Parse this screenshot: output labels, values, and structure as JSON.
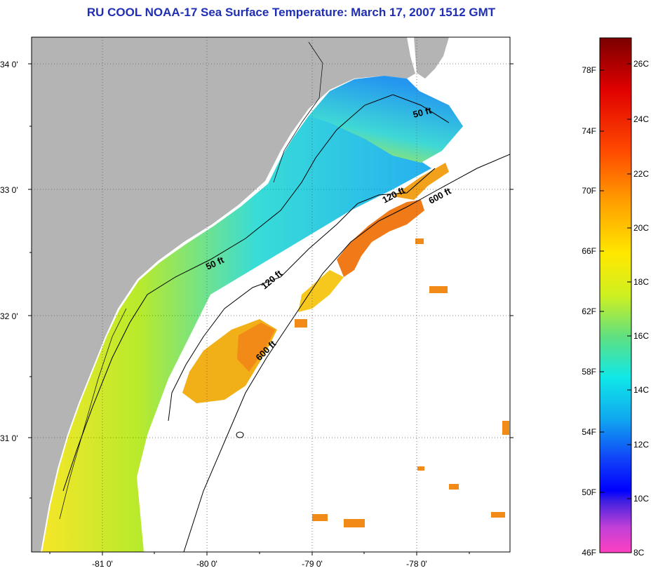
{
  "title": "RU COOL  NOAA-17  Sea Surface Temperature:  March 17, 2007 1512 GMT",
  "lat_labels": [
    "34 0'",
    "33 0'",
    "32 0'",
    "31 0'"
  ],
  "lon_labels": [
    "-81 0'",
    "-80 0'",
    "-79 0'",
    "-78 0'"
  ],
  "contour_labels": {
    "c50_north": "50 ft",
    "c120_north": "120 ft",
    "c600_north": "600 ft",
    "c50_mid": "50 ft",
    "c120_mid": "120 ft",
    "c600_south": "600 ft"
  },
  "colorbar": {
    "fahrenheit": [
      "78F",
      "74F",
      "70F",
      "66F",
      "62F",
      "58F",
      "54F",
      "50F",
      "46F"
    ],
    "celsius": [
      "26C",
      "24C",
      "22C",
      "20C",
      "18C",
      "16C",
      "14C",
      "12C",
      "10C",
      "8C"
    ]
  },
  "colors": {
    "land": "#b4b4b4",
    "title": "#1f2fb4",
    "warm_sst": "#f07a18",
    "cool_sst": "#3ab6f2"
  }
}
